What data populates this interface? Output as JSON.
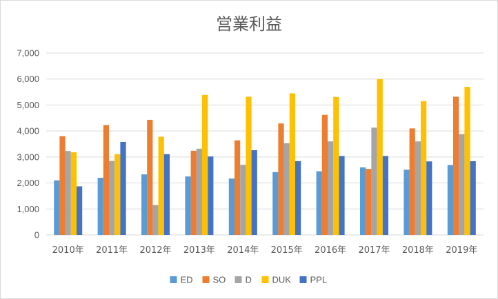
{
  "chart_data": {
    "type": "bar",
    "title": "営業利益",
    "categories": [
      "2010年",
      "2011年",
      "2012年",
      "2013年",
      "2014年",
      "2015年",
      "2016年",
      "2017年",
      "2018年",
      "2019年"
    ],
    "series": [
      {
        "name": "ED",
        "color": "#5B9BD5",
        "values": [
          2100,
          2200,
          2330,
          2250,
          2170,
          2420,
          2450,
          2600,
          2510,
          2690
        ]
      },
      {
        "name": "SO",
        "color": "#ED7D31",
        "values": [
          3800,
          4230,
          4430,
          3240,
          3640,
          4290,
          4620,
          2540,
          4100,
          5320
        ]
      },
      {
        "name": "D",
        "color": "#A5A5A5",
        "values": [
          3230,
          2850,
          1150,
          3320,
          2700,
          3530,
          3600,
          4130,
          3600,
          3880
        ]
      },
      {
        "name": "DUK",
        "color": "#FFC000",
        "values": [
          3180,
          3110,
          3780,
          5390,
          5320,
          5450,
          5310,
          6000,
          5150,
          5700
        ]
      },
      {
        "name": "PPL",
        "color": "#4472C4",
        "values": [
          1870,
          3580,
          3110,
          3020,
          3260,
          2840,
          3040,
          3040,
          2830,
          2840
        ]
      }
    ],
    "xlabel": "",
    "ylabel": "",
    "ylim": [
      0,
      7000
    ],
    "yticks": [
      "0",
      "1,000",
      "2,000",
      "3,000",
      "4,000",
      "5,000",
      "6,000",
      "7,000"
    ],
    "grid": true,
    "legend_position": "bottom"
  }
}
